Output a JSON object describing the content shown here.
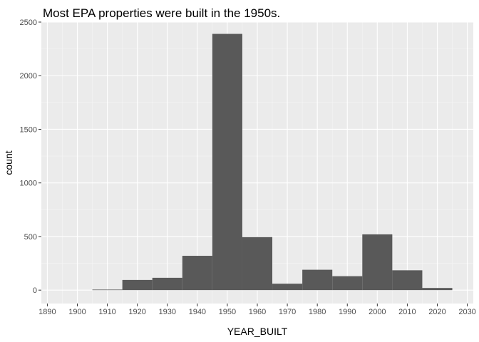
{
  "chart_data": {
    "type": "bar",
    "title": "Most EPA properties were built in the 1950s.",
    "xlabel": "YEAR_BUILT",
    "ylabel": "count",
    "xlim": [
      1888,
      2032
    ],
    "ylim": [
      -125,
      2500
    ],
    "x_ticks": [
      1890,
      1900,
      1910,
      1920,
      1930,
      1940,
      1950,
      1960,
      1970,
      1980,
      1990,
      2000,
      2010,
      2020,
      2030
    ],
    "y_ticks": [
      0,
      500,
      1000,
      1500,
      2000,
      2500
    ],
    "bins": [
      {
        "x0": 1905,
        "x1": 1915,
        "count": 5
      },
      {
        "x0": 1915,
        "x1": 1925,
        "count": 95
      },
      {
        "x0": 1925,
        "x1": 1935,
        "count": 115
      },
      {
        "x0": 1935,
        "x1": 1945,
        "count": 320
      },
      {
        "x0": 1945,
        "x1": 1955,
        "count": 2390
      },
      {
        "x0": 1955,
        "x1": 1965,
        "count": 495
      },
      {
        "x0": 1965,
        "x1": 1975,
        "count": 60
      },
      {
        "x0": 1975,
        "x1": 1985,
        "count": 190
      },
      {
        "x0": 1985,
        "x1": 1995,
        "count": 130
      },
      {
        "x0": 1995,
        "x1": 2005,
        "count": 520
      },
      {
        "x0": 2005,
        "x1": 2015,
        "count": 185
      },
      {
        "x0": 2015,
        "x1": 2025,
        "count": 20
      }
    ],
    "grid": true,
    "colors": {
      "panel_background": "#ebebeb",
      "grid_major": "#ffffff",
      "grid_minor": "#f5f5f5",
      "bar_fill": "#595959",
      "tick_text": "#4d4d4d"
    }
  }
}
